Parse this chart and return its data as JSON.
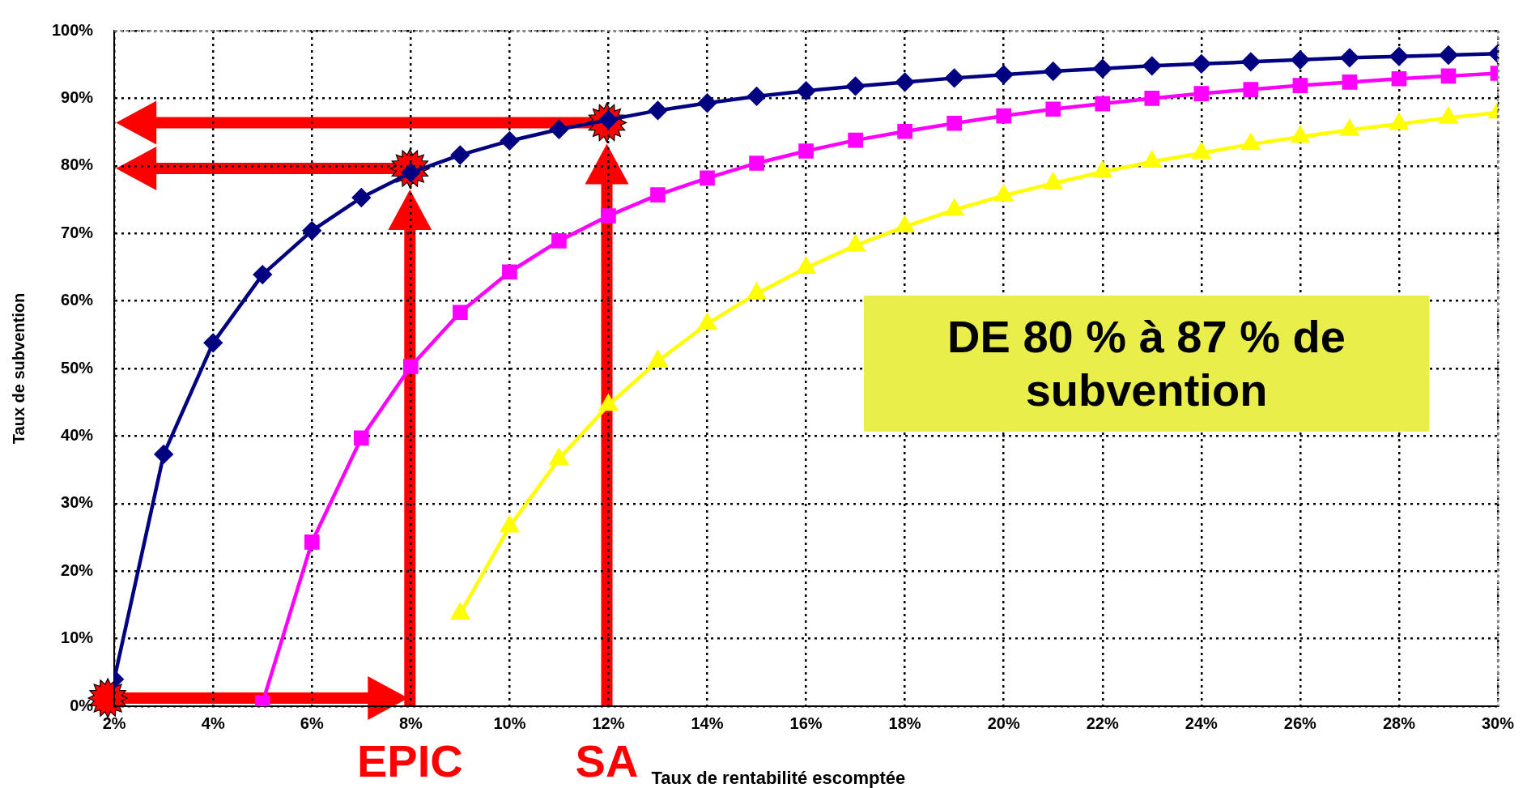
{
  "chart_data": {
    "type": "line",
    "xlabel": "Taux de rentabilité escomptée",
    "ylabel": "Taux de subvention",
    "xlim": [
      2,
      30
    ],
    "ylim": [
      0,
      100
    ],
    "xticks": [
      {
        "value": 2,
        "label": "2%"
      },
      {
        "value": 4,
        "label": "4%"
      },
      {
        "value": 6,
        "label": "6%"
      },
      {
        "value": 8,
        "label": "8%"
      },
      {
        "value": 10,
        "label": "10%"
      },
      {
        "value": 12,
        "label": "12%"
      },
      {
        "value": 14,
        "label": "14%"
      },
      {
        "value": 16,
        "label": "16%"
      },
      {
        "value": 18,
        "label": "18%"
      },
      {
        "value": 20,
        "label": "20%"
      },
      {
        "value": 22,
        "label": "22%"
      },
      {
        "value": 24,
        "label": "24%"
      },
      {
        "value": 26,
        "label": "26%"
      },
      {
        "value": 28,
        "label": "28%"
      },
      {
        "value": 30,
        "label": "30%"
      }
    ],
    "yticks": [
      {
        "value": 0,
        "label": "0%"
      },
      {
        "value": 10,
        "label": "10%"
      },
      {
        "value": 20,
        "label": "20%"
      },
      {
        "value": 30,
        "label": "30%"
      },
      {
        "value": 40,
        "label": "40%"
      },
      {
        "value": 50,
        "label": "50%"
      },
      {
        "value": 60,
        "label": "60%"
      },
      {
        "value": 70,
        "label": "70%"
      },
      {
        "value": 80,
        "label": "80%"
      },
      {
        "value": 90,
        "label": "90%"
      },
      {
        "value": 100,
        "label": "100%"
      }
    ],
    "grid": true,
    "legend": false,
    "line_style": "solid",
    "series": [
      {
        "color": "#000080",
        "marker": "diamond",
        "x": [
          2,
          3,
          4,
          5,
          6,
          7,
          8,
          9,
          10,
          11,
          12,
          13,
          14,
          15,
          16,
          17,
          18,
          19,
          20,
          21,
          22,
          23,
          24,
          25,
          26,
          27,
          28,
          29,
          30
        ],
        "values": [
          4,
          37.3,
          53.8,
          63.9,
          70.4,
          75.3,
          79,
          81.6,
          83.7,
          85.4,
          86.8,
          88.2,
          89.3,
          90.3,
          91.1,
          91.8,
          92.4,
          93,
          93.5,
          94,
          94.4,
          94.8,
          95.1,
          95.4,
          95.7,
          96,
          96.2,
          96.4,
          96.6
        ]
      },
      {
        "color": "#ff00ff",
        "marker": "square",
        "x": [
          5,
          6,
          7,
          8,
          9,
          10,
          11,
          12,
          13,
          14,
          15,
          16,
          17,
          18,
          19,
          20,
          21,
          22,
          23,
          24,
          25,
          26,
          27,
          28,
          29,
          30
        ],
        "values": [
          0.5,
          24.3,
          39.7,
          50.3,
          58.3,
          64.3,
          68.9,
          72.6,
          75.7,
          78.2,
          80.4,
          82.2,
          83.8,
          85.1,
          86.3,
          87.4,
          88.4,
          89.2,
          90,
          90.7,
          91.3,
          91.9,
          92.4,
          92.9,
          93.3,
          93.7
        ]
      },
      {
        "color": "#ffff00",
        "marker": "triangle",
        "x": [
          9,
          10,
          11,
          12,
          13,
          14,
          15,
          16,
          17,
          18,
          19,
          20,
          21,
          22,
          23,
          24,
          25,
          26,
          27,
          28,
          29,
          30
        ],
        "values": [
          13.7,
          26.6,
          36.6,
          44.6,
          51.1,
          56.6,
          61.1,
          64.9,
          68.2,
          71,
          73.5,
          75.6,
          77.4,
          79.1,
          80.6,
          81.9,
          83.2,
          84.3,
          85.3,
          86.2,
          87.1,
          87.9
        ]
      }
    ],
    "annotations": [
      "DE 80 % à 87 % de subvention",
      "EPIC",
      "SA"
    ]
  }
}
